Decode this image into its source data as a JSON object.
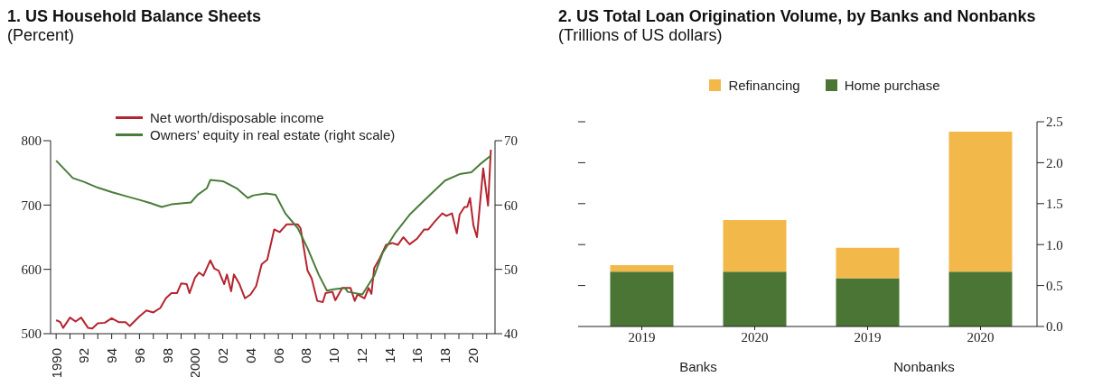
{
  "chart_data": [
    {
      "type": "line",
      "title": "1.   US Household Balance Sheets",
      "subtitle": "(Percent)",
      "legend": "top",
      "xlim": [
        1989.6,
        2021.6
      ],
      "xticks": [
        1990,
        {
          "value": 1991,
          "label": null
        },
        {
          "value": 1992,
          "label": "92"
        },
        {
          "value": 1993,
          "label": null
        },
        {
          "value": 1994,
          "label": "94"
        },
        {
          "value": 1995,
          "label": null
        },
        {
          "value": 1996,
          "label": "96"
        },
        {
          "value": 1997,
          "label": null
        },
        {
          "value": 1998,
          "label": "98"
        },
        {
          "value": 1999,
          "label": null
        },
        2000,
        {
          "value": 2001,
          "label": null
        },
        {
          "value": 2002,
          "label": "02"
        },
        {
          "value": 2003,
          "label": null
        },
        {
          "value": 2004,
          "label": "04"
        },
        {
          "value": 2005,
          "label": null
        },
        {
          "value": 2006,
          "label": "06"
        },
        {
          "value": 2007,
          "label": null
        },
        {
          "value": 2008,
          "label": "08"
        },
        {
          "value": 2009,
          "label": null
        },
        {
          "value": 2010,
          "label": "10"
        },
        {
          "value": 2011,
          "label": null
        },
        {
          "value": 2012,
          "label": "12"
        },
        {
          "value": 2013,
          "label": null
        },
        {
          "value": 2014,
          "label": "14"
        },
        {
          "value": 2015,
          "label": null
        },
        {
          "value": 2016,
          "label": "16"
        },
        {
          "value": 2017,
          "label": null
        },
        {
          "value": 2018,
          "label": "18"
        },
        {
          "value": 2019,
          "label": null
        },
        {
          "value": 2020,
          "label": "20"
        },
        {
          "value": 2021,
          "label": null
        }
      ],
      "ylim": [
        500,
        800
      ],
      "yticks": [
        500,
        600,
        700,
        800
      ],
      "y2lim": [
        40,
        70
      ],
      "y2ticks": [
        40,
        50,
        60,
        70
      ],
      "series": [
        {
          "name": "Net worth/disposable income",
          "color": "#b5242f",
          "x": [
            1990,
            1990.3,
            1990.5,
            1991,
            1991.4,
            1991.8,
            1992.3,
            1992.6,
            1993,
            1993.5,
            1994,
            1994.5,
            1995,
            1995.3,
            1996,
            1996.5,
            1997,
            1997.5,
            1997.9,
            1998.3,
            1998.7,
            1999,
            1999.4,
            1999.6,
            2000,
            2000.3,
            2000.6,
            2001.1,
            2001.4,
            2001.7,
            2002.1,
            2002.3,
            2002.6,
            2002.8,
            2003.2,
            2003.6,
            2004,
            2004.4,
            2004.8,
            2005.2,
            2005.7,
            2006.1,
            2006.6,
            2007.4,
            2007.6,
            2008.1,
            2008.4,
            2008.8,
            2009.2,
            2009.4,
            2009.9,
            2010.1,
            2010.6,
            2011.2,
            2011.5,
            2011.7,
            2012.2,
            2012.5,
            2012.7,
            2012.9,
            2013.3,
            2013.75,
            2014.2,
            2014.6,
            2015.0,
            2015.45,
            2016,
            2016.5,
            2016.8,
            2017.25,
            2017.8,
            2018.1,
            2018.5,
            2018.85,
            2019.05,
            2019.4,
            2019.6,
            2019.8,
            2020.05,
            2020.3,
            2020.75,
            2021.1,
            2021.3
          ],
          "values": [
            521,
            518,
            509,
            525,
            519,
            525,
            509,
            508,
            516,
            517,
            524,
            518,
            518,
            512,
            527,
            536,
            533,
            540,
            555,
            563,
            563,
            578,
            577,
            563,
            587,
            595,
            590,
            614,
            601,
            598,
            577,
            592,
            566,
            592,
            577,
            555,
            561,
            574,
            608,
            615,
            662,
            658,
            670,
            670,
            664,
            598,
            586,
            551,
            549,
            563,
            565,
            552,
            571,
            571,
            551,
            561,
            555,
            571,
            562,
            602,
            617,
            638,
            641,
            638,
            650,
            639,
            648,
            662,
            662,
            674,
            687,
            683,
            687,
            656,
            685,
            697,
            697,
            711,
            668,
            650,
            757,
            699,
            786
          ]
        },
        {
          "name": "Owners’ equity in real estate (right scale)",
          "color": "#4a7c3a",
          "axis": "y2",
          "x": [
            1990,
            1991.2,
            1992,
            1993,
            1994,
            1995,
            1996,
            1996.8,
            1997.6,
            1998.3,
            1999.7,
            2000.2,
            2000.85,
            2001.1,
            2002,
            2003,
            2003.8,
            2004.2,
            2005.1,
            2005.8,
            2006.5,
            2007.4,
            2008.1,
            2008.9,
            2009.5,
            2010.0,
            2010.8,
            2011,
            2012.05,
            2012.9,
            2013.5,
            2014.4,
            2015.45,
            2016.5,
            2018,
            2019.05,
            2019.9,
            2020.5,
            2021.3
          ],
          "values": [
            66.9,
            64.2,
            63.6,
            62.7,
            62.0,
            61.4,
            60.8,
            60.3,
            59.7,
            60.1,
            60.4,
            61.6,
            62.6,
            63.9,
            63.7,
            62.6,
            61.1,
            61.5,
            61.8,
            61.6,
            58.7,
            56.4,
            53.3,
            49.2,
            46.7,
            46.9,
            47.1,
            46.5,
            46.1,
            49.0,
            52.5,
            55.6,
            58.5,
            60.7,
            63.8,
            64.8,
            65.1,
            66.3,
            67.7
          ]
        }
      ]
    },
    {
      "type": "bar",
      "title": "2.   US Total Loan Origination Volume, by Banks and Nonbanks",
      "subtitle": "(Trillions of US dollars)",
      "legend": "top",
      "stacked": true,
      "categories": [
        "2019",
        "2020",
        "2019",
        "2020"
      ],
      "annotations": [
        "Banks",
        "Nonbanks"
      ],
      "ylim": [
        0,
        2.5
      ],
      "yticks": [
        {
          "value": 0,
          "label": "0.0"
        },
        0.5,
        {
          "value": 1,
          "label": "1.0"
        },
        1.5,
        {
          "value": 2,
          "label": "2.0"
        },
        2.5
      ],
      "series": [
        {
          "name": "Home purchase",
          "color": "#4a7535",
          "values": [
            0.67,
            0.67,
            0.59,
            0.67
          ]
        },
        {
          "name": "Refinancing",
          "color": "#f2b94a",
          "values": [
            0.08,
            0.63,
            0.37,
            1.71
          ]
        }
      ]
    }
  ]
}
